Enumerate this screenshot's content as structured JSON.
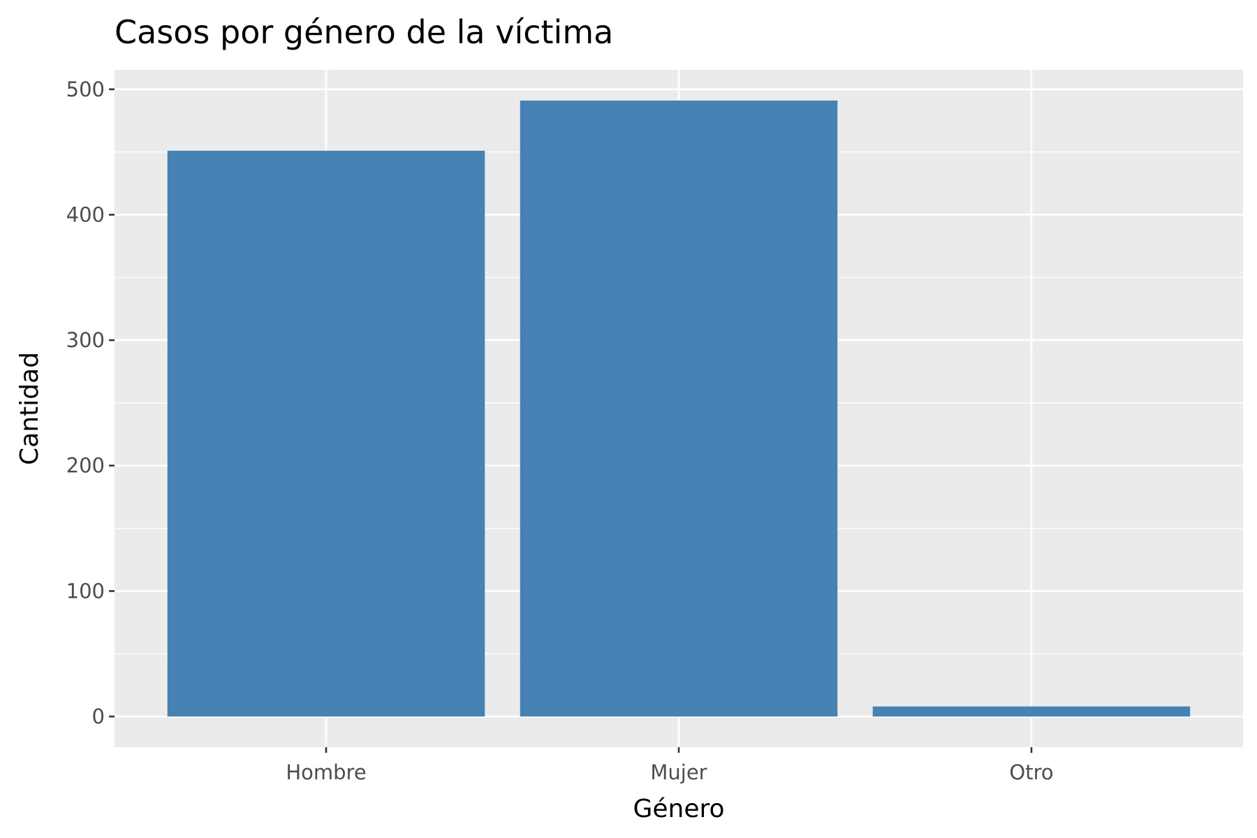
{
  "chart_data": {
    "type": "bar",
    "title": "Casos por género de la víctima",
    "xlabel": "Género",
    "ylabel": "Cantidad",
    "categories": [
      "Hombre",
      "Mujer",
      "Otro"
    ],
    "values": [
      451,
      491,
      8
    ],
    "ylim": [
      -24.5,
      515.5
    ],
    "yticks": [
      0,
      100,
      200,
      300,
      400,
      500
    ],
    "ytick_labels": [
      "0",
      "100",
      "200",
      "300",
      "400",
      "500"
    ],
    "grid": true,
    "legend": "none",
    "colors": {
      "bar": "#4682b4",
      "panel_background": "#ebebeb",
      "grid": "#ffffff",
      "tick_mark": "#333333",
      "tick_label": "#4d4d4d"
    }
  }
}
